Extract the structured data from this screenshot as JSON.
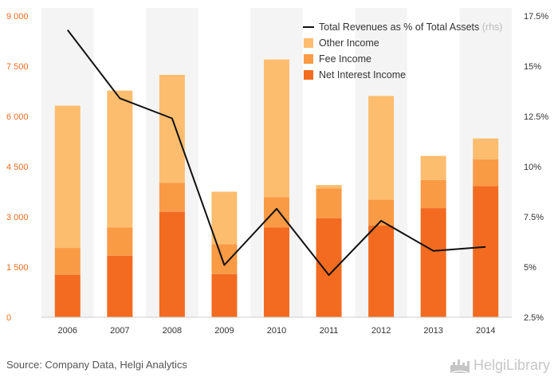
{
  "chart_data": {
    "type": "bar",
    "stacked": true,
    "categories": [
      "2006",
      "2007",
      "2008",
      "2009",
      "2010",
      "2011",
      "2012",
      "2013",
      "2014"
    ],
    "series": [
      {
        "name": "Net Interest Income",
        "color": "#f26b21",
        "values": [
          1270,
          1840,
          3150,
          1290,
          2680,
          2960,
          2740,
          3260,
          3920
        ]
      },
      {
        "name": "Fee Income",
        "color": "#f99a45",
        "values": [
          800,
          840,
          870,
          890,
          910,
          890,
          770,
          840,
          800
        ]
      },
      {
        "name": "Other Income",
        "color": "#fdbd6f",
        "values": [
          4250,
          4090,
          3220,
          1570,
          4110,
          100,
          3100,
          720,
          620
        ]
      }
    ],
    "line": {
      "name": "Total Revenues as % of Total Assets",
      "suffix": "(rhs)",
      "color": "#111111",
      "values": [
        16.8,
        13.4,
        12.4,
        5.1,
        7.9,
        4.6,
        7.3,
        5.8,
        6.0
      ]
    },
    "y_left": {
      "min": 0,
      "max": 9000,
      "ticks": [
        "0",
        "1 500",
        "3 000",
        "4 500",
        "6 000",
        "7 500",
        "9 000"
      ]
    },
    "y_right": {
      "min": 2.5,
      "max": 17.5,
      "ticks": [
        "2.5%",
        "5%",
        "7.5%",
        "10%",
        "12.5%",
        "15%",
        "17.5%"
      ]
    },
    "legend_position": "top-right",
    "grid": false
  },
  "footer": {
    "source": "Source: Company Data, Helgi Analytics",
    "logo_text": "HelgiLibrary"
  }
}
